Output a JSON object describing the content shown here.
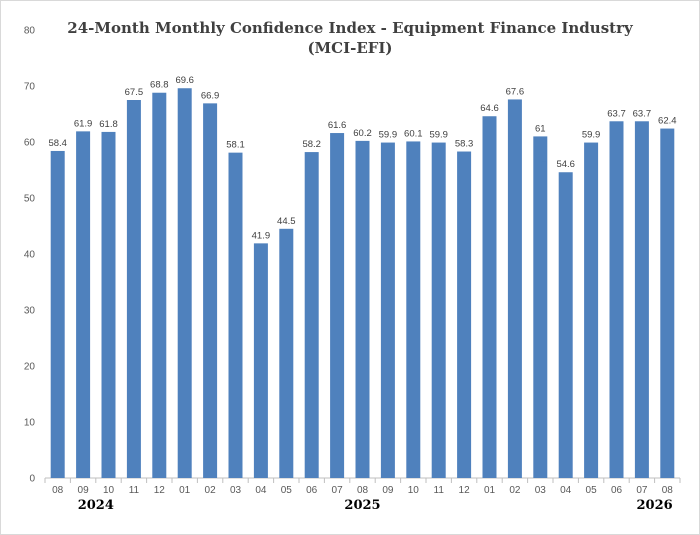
{
  "chart_data": {
    "type": "bar",
    "title_line1": "24-Month Monthly Confidence Index - Equipment Finance Industry",
    "title_line2": "(MCI-EFI)",
    "xlabel": "",
    "ylabel": "",
    "ylim": [
      0,
      80
    ],
    "yticks": [
      "0",
      "10",
      "20",
      "30",
      "40",
      "50",
      "60",
      "70",
      "80"
    ],
    "categories": [
      "08",
      "09",
      "10",
      "11",
      "12",
      "01",
      "02",
      "03",
      "04",
      "05",
      "06",
      "07",
      "08",
      "09",
      "10",
      "11",
      "12",
      "01",
      "02",
      "03",
      "04",
      "05",
      "06",
      "07",
      "08"
    ],
    "values": [
      58.4,
      61.9,
      61.8,
      67.5,
      68.8,
      69.6,
      66.9,
      58.1,
      41.9,
      44.5,
      58.2,
      61.6,
      60.2,
      59.9,
      60.1,
      59.9,
      58.3,
      64.6,
      67.6,
      61,
      54.6,
      59.9,
      63.7,
      63.7,
      62.4
    ],
    "value_labels": [
      "58.4",
      "61.9",
      "61.8",
      "67.5",
      "68.8",
      "69.6",
      "66.9",
      "58.1",
      "41.9",
      "44.5",
      "58.2",
      "61.6",
      "60.2",
      "59.9",
      "60.1",
      "59.9",
      "58.3",
      "64.6",
      "67.6",
      "61",
      "54.6",
      "59.9",
      "63.7",
      "63.7",
      "62.4"
    ],
    "year_labels": [
      {
        "text": "2024",
        "category_index": 1.5
      },
      {
        "text": "2025",
        "category_index": 12
      },
      {
        "text": "2026",
        "category_index": 23.5
      }
    ],
    "bar_color": "#4f81bd",
    "grid": false,
    "legend_placement": "inline-left-of-bar-21"
  }
}
